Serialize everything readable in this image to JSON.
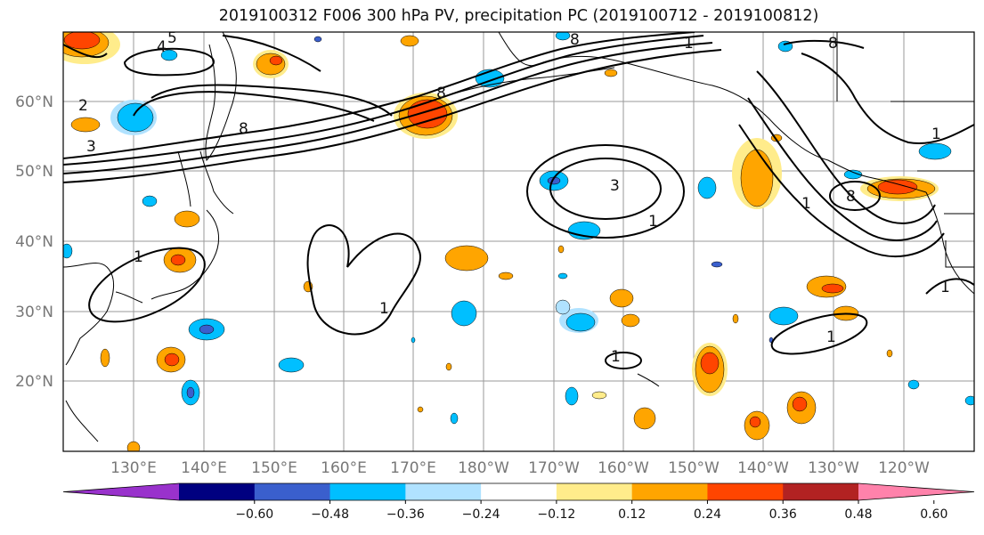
{
  "title": "2019100312 F006 300 hPa PV, precipitation PC (2019100712 - 2019100812)",
  "lat_labels": [
    "60°N",
    "50°N",
    "40°N",
    "30°N",
    "20°N"
  ],
  "lon_labels": [
    "130°E",
    "140°E",
    "150°E",
    "160°E",
    "170°E",
    "180°W",
    "170°W",
    "160°W",
    "150°W",
    "140°W",
    "130°W",
    "120°W"
  ],
  "colorbar": {
    "tick_labels": [
      "−0.60",
      "−0.48",
      "−0.36",
      "−0.24",
      "−0.12",
      "0.12",
      "0.24",
      "0.36",
      "0.48",
      "0.60"
    ],
    "colors": [
      "#9932cc",
      "#000080",
      "#3a5fcd",
      "#00bfff",
      "#b0e2ff",
      "#ffffff",
      "#ffec8b",
      "#ffa500",
      "#ff4500",
      "#b22222",
      "#ff82ab"
    ]
  },
  "contour_labels": [
    "4",
    "5",
    "3",
    "2",
    "8",
    "8",
    "8",
    "1",
    "3",
    "1",
    "1",
    "1",
    "1",
    "1",
    "1",
    "1",
    "8",
    "8",
    "1"
  ],
  "shading_colors": {
    "light_yellow": "#ffec8b",
    "orange": "#ffa500",
    "red_orange": "#ff4500",
    "dark_red": "#b22222",
    "light_blue": "#b0e2ff",
    "blue": "#00bfff",
    "royal_blue": "#3a5fcd",
    "purple": "#9932cc"
  }
}
